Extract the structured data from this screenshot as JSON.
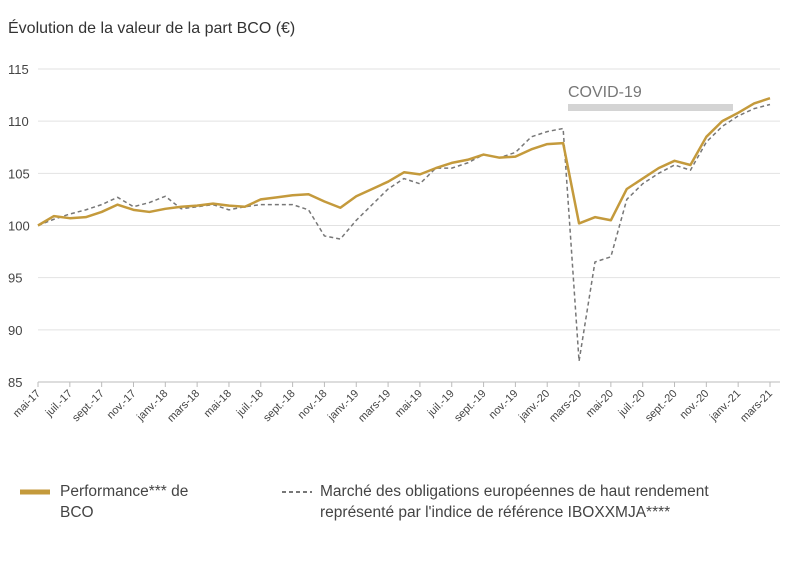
{
  "chart_data": {
    "type": "line",
    "title": "Évolution de la valeur de la part BCO (€)",
    "annotation": "COVID-19",
    "categories": [
      "mai-17",
      null,
      "juil.-17",
      null,
      "sept.-17",
      null,
      "nov.-17",
      null,
      "janv.-18",
      null,
      "mars-18",
      null,
      "mai-18",
      null,
      "juil.-18",
      null,
      "sept.-18",
      null,
      "nov.-18",
      null,
      "janv.-19",
      null,
      "mars-19",
      null,
      "mai-19",
      null,
      "juil.-19",
      null,
      "sept.-19",
      null,
      "nov.-19",
      null,
      "janv.-20",
      null,
      "mars-20",
      null,
      "mai-20",
      null,
      "juil.-20",
      null,
      "sept.-20",
      null,
      "nov.-20",
      null,
      "janv.-21",
      null,
      "mars-21"
    ],
    "series": [
      {
        "name": "Performance*** de BCO",
        "color": "#c49a3c",
        "dashed": false,
        "values": [
          100,
          100.9,
          100.7,
          100.8,
          101.3,
          102,
          101.5,
          101.3,
          101.6,
          101.8,
          101.9,
          102.1,
          101.9,
          101.8,
          102.5,
          102.7,
          102.9,
          103,
          102.3,
          101.7,
          102.8,
          103.5,
          104.2,
          105.1,
          104.9,
          105.5,
          106,
          106.3,
          106.8,
          106.5,
          106.6,
          107.3,
          107.8,
          107.9,
          100.2,
          100.8,
          100.5,
          103.5,
          104.5,
          105.5,
          106.2,
          105.8,
          108.5,
          110,
          110.8,
          111.7,
          112.2
        ]
      },
      {
        "name": "Marché des obligations européennes de haut rendement représenté par l'indice de référence IBOXXMJA****",
        "color": "#777777",
        "dashed": true,
        "values": [
          100,
          100.6,
          101.1,
          101.5,
          102,
          102.7,
          101.8,
          102.2,
          102.8,
          101.6,
          101.8,
          102,
          101.5,
          101.8,
          102,
          102,
          102,
          101.5,
          99,
          98.7,
          100.5,
          102,
          103.5,
          104.5,
          104,
          105.5,
          105.5,
          106,
          106.8,
          106.5,
          107,
          108.5,
          109,
          109.3,
          87,
          96.5,
          97,
          102.5,
          104,
          105,
          105.8,
          105.3,
          108,
          109.5,
          110.5,
          111.2,
          111.6
        ]
      }
    ],
    "ylim": [
      85,
      115
    ],
    "yticks": [
      85,
      90,
      95,
      100,
      105,
      110,
      115
    ],
    "grid": true
  }
}
